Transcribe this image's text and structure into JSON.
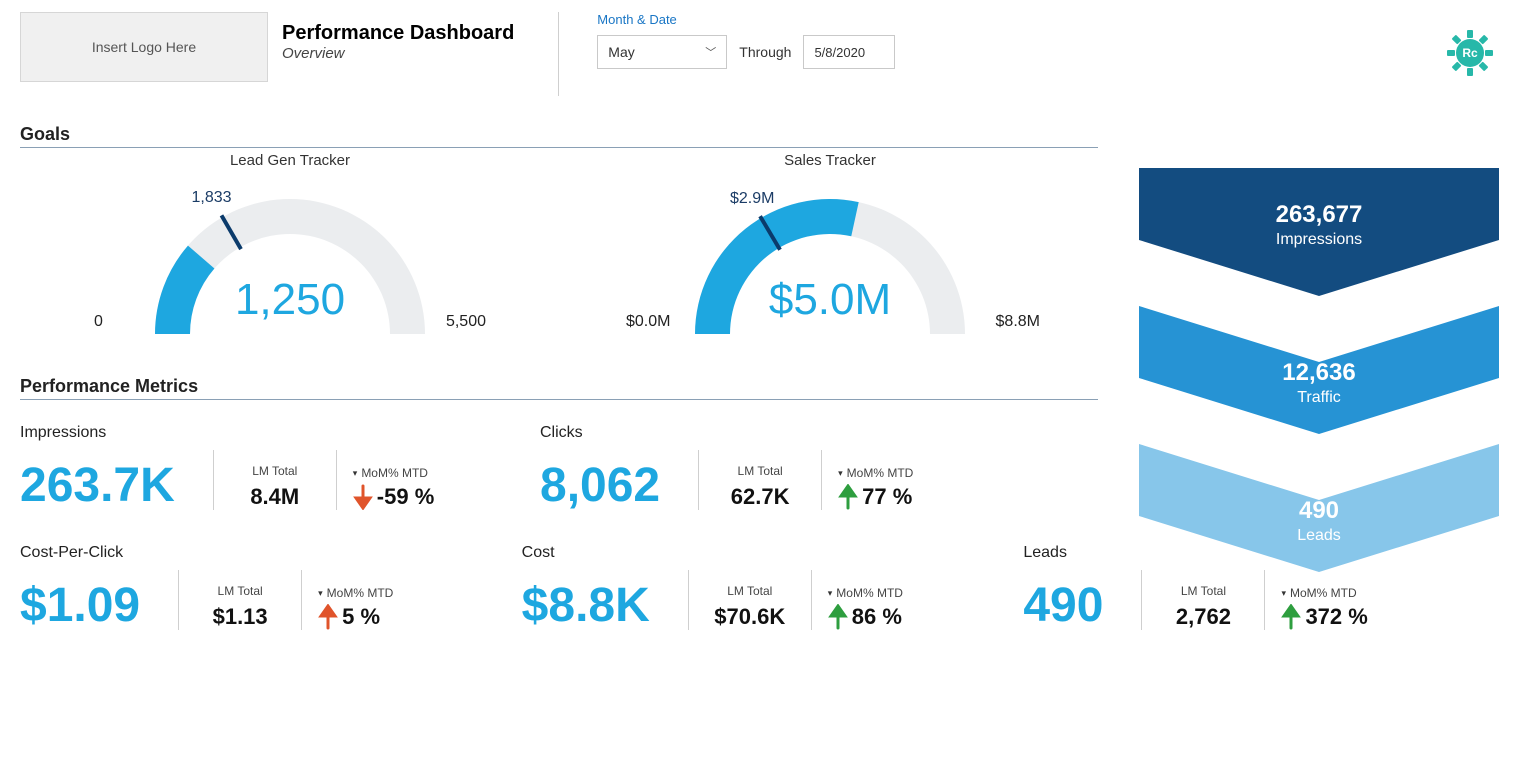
{
  "header": {
    "logo_placeholder": "Insert Logo Here",
    "title": "Performance Dashboard",
    "subtitle": "Overview",
    "date_label": "Month & Date",
    "month_selected": "May",
    "through_label": "Through",
    "date_value": "5/8/2020",
    "gear_color": "#27b8a9"
  },
  "colors": {
    "accent": "#1ea7e0",
    "accent_dark": "#0d5f9e",
    "track": "#ebedef",
    "needle": "#0b3b6b",
    "up_green": "#2e9e3f",
    "down_red": "#e0542b",
    "funnel": [
      "#134c80",
      "#2693d4",
      "#87c6ea"
    ]
  },
  "goals": {
    "section_title": "Goals",
    "lead": {
      "title": "Lead Gen Tracker",
      "min": 0,
      "max": 5500,
      "value": 1250,
      "marker": 1833,
      "min_label": "0",
      "max_label": "5,500",
      "value_label": "1,250",
      "marker_label": "1,833",
      "value_color": "#1ea7e0"
    },
    "sales": {
      "title": "Sales Tracker",
      "min": 0,
      "max": 8.8,
      "value": 5.0,
      "marker": 2.9,
      "min_label": "$0.0M",
      "max_label": "$8.8M",
      "value_label": "$5.0M",
      "marker_label": "$2.9M",
      "value_color": "#1ea7e0"
    }
  },
  "perf": {
    "section_title": "Performance Metrics",
    "lm_label": "LM Total",
    "mom_label": "MoM% MTD",
    "row1": [
      {
        "name": "Impressions",
        "big": "263.7K",
        "lm": "8.4M",
        "dir": "down",
        "pct": "-59 %"
      },
      {
        "name": "Clicks",
        "big": "8,062",
        "lm": "62.7K",
        "dir": "up",
        "pct": "77 %"
      }
    ],
    "row2": [
      {
        "name": "Cost-Per-Click",
        "big": "$1.09",
        "lm": "$1.13",
        "dir": "up_red",
        "pct": "5 %"
      },
      {
        "name": "Cost",
        "big": "$8.8K",
        "lm": "$70.6K",
        "dir": "up",
        "pct": "86 %"
      },
      {
        "name": "Leads",
        "big": "490",
        "lm": "2,762",
        "dir": "up",
        "pct": "372 %"
      }
    ]
  },
  "funnel": {
    "steps": [
      {
        "value": "263,677",
        "label": "Impressions"
      },
      {
        "value": "12,636",
        "label": "Traffic"
      },
      {
        "value": "490",
        "label": "Leads"
      }
    ]
  }
}
